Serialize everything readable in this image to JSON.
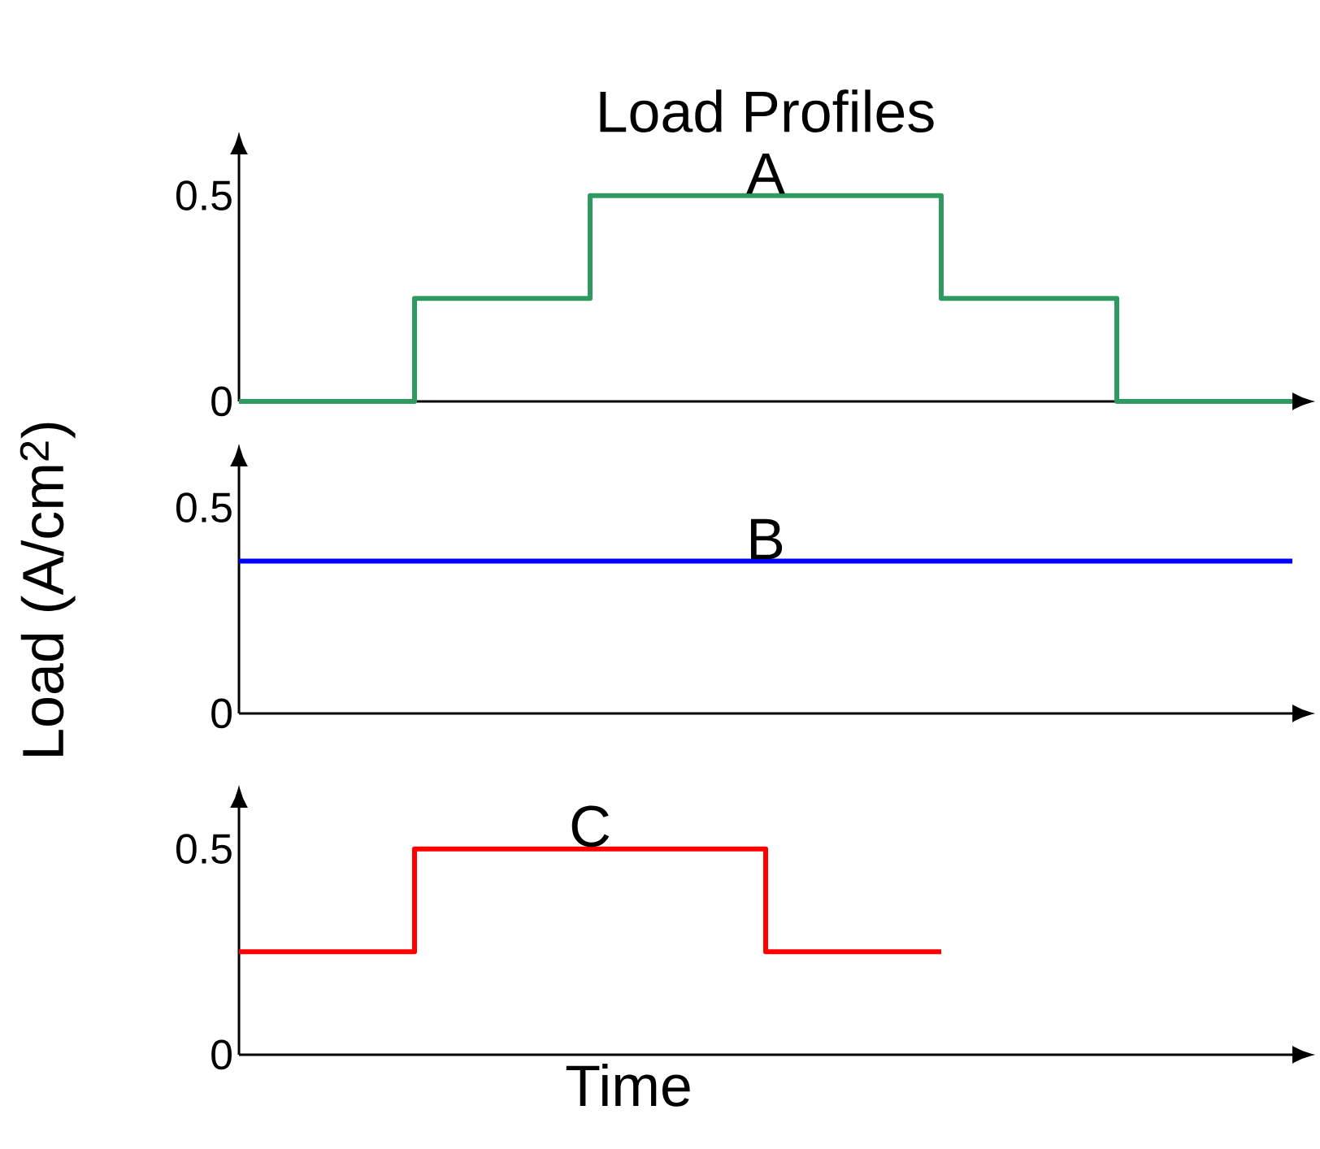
{
  "chart_data": [
    {
      "type": "step",
      "title": "Load Profiles",
      "categories": [
        null,
        null,
        null,
        null,
        null,
        null,
        null
      ],
      "series": [
        {
          "name": "A",
          "color": "#2e9a61",
          "values": [
            0,
            0.25,
            0.5,
            0.5,
            0.25,
            0,
            0
          ]
        }
      ],
      "ylim": [
        0,
        0.6
      ],
      "yticks": [
        0,
        0.5
      ],
      "tick_labels": "y"
    },
    {
      "type": "step",
      "ylabel": "Load (A/cm$^{2}$)",
      "categories": [
        null,
        null,
        null,
        null,
        null,
        null,
        null
      ],
      "series": [
        {
          "name": "B",
          "color": "#0000ff",
          "values": [
            0.37,
            0.37,
            0.37,
            0.37,
            0.37,
            0.37,
            0.37
          ]
        }
      ],
      "ylim": [
        0,
        0.6
      ],
      "yticks": [
        0,
        0.5
      ],
      "tick_labels": "y"
    },
    {
      "type": "step",
      "xlabel": "Time",
      "categories": [
        null,
        null,
        null,
        null,
        null,
        null,
        null
      ],
      "series": [
        {
          "name": "C",
          "color": "#ff0000",
          "values": [
            0.25,
            0.5,
            0.5,
            0.25,
            0.25,
            null,
            null
          ]
        }
      ],
      "ylim": [
        0,
        0.6
      ],
      "yticks": [
        0,
        0.5
      ],
      "tick_labels": "y"
    }
  ]
}
